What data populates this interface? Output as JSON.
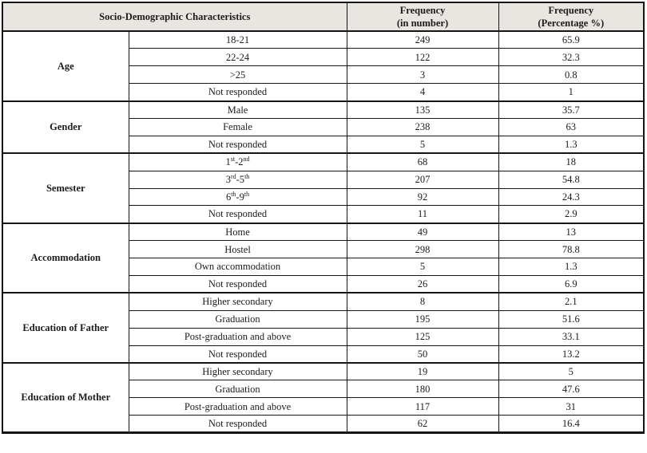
{
  "colors": {
    "header_bg": "#e9e6e2",
    "border": "#151515",
    "text": "#1c1c1c",
    "page_bg": "#ffffff"
  },
  "table": {
    "header": {
      "characteristics": "Socio-Demographic Characteristics",
      "freq_number_lines": [
        "Frequency",
        "(in number)"
      ],
      "freq_percent_lines": [
        "Frequency",
        "(Percentage %)"
      ]
    },
    "groups": [
      {
        "category": "Age",
        "rows": [
          {
            "label": [
              {
                "t": "18-21"
              }
            ],
            "freq": "249",
            "pct": "65.9"
          },
          {
            "label": [
              {
                "t": "22-24"
              }
            ],
            "freq": "122",
            "pct": "32.3"
          },
          {
            "label": [
              {
                "t": ">25"
              }
            ],
            "freq": "3",
            "pct": "0.8"
          },
          {
            "label": [
              {
                "t": "Not responded"
              }
            ],
            "freq": "4",
            "pct": "1"
          }
        ]
      },
      {
        "category": "Gender",
        "rows": [
          {
            "label": [
              {
                "t": "Male"
              }
            ],
            "freq": "135",
            "pct": "35.7"
          },
          {
            "label": [
              {
                "t": "Female"
              }
            ],
            "freq": "238",
            "pct": "63"
          },
          {
            "label": [
              {
                "t": "Not responded"
              }
            ],
            "freq": "5",
            "pct": "1.3"
          }
        ]
      },
      {
        "category": "Semester",
        "rows": [
          {
            "label": [
              {
                "t": "1"
              },
              {
                "t": "st",
                "sup": true
              },
              {
                "t": "-2"
              },
              {
                "t": "nd",
                "sup": true
              }
            ],
            "freq": "68",
            "pct": "18"
          },
          {
            "label": [
              {
                "t": "3"
              },
              {
                "t": "rd",
                "sup": true
              },
              {
                "t": "-5"
              },
              {
                "t": "th",
                "sup": true
              }
            ],
            "freq": "207",
            "pct": "54.8"
          },
          {
            "label": [
              {
                "t": "6"
              },
              {
                "t": "th",
                "sup": true
              },
              {
                "t": "-9"
              },
              {
                "t": "th",
                "sup": true
              }
            ],
            "freq": "92",
            "pct": "24.3"
          },
          {
            "label": [
              {
                "t": "Not responded"
              }
            ],
            "freq": "11",
            "pct": "2.9"
          }
        ]
      },
      {
        "category": "Accommodation",
        "rows": [
          {
            "label": [
              {
                "t": "Home"
              }
            ],
            "freq": "49",
            "pct": "13"
          },
          {
            "label": [
              {
                "t": "Hostel"
              }
            ],
            "freq": "298",
            "pct": "78.8"
          },
          {
            "label": [
              {
                "t": "Own accommodation"
              }
            ],
            "freq": "5",
            "pct": "1.3"
          },
          {
            "label": [
              {
                "t": "Not responded"
              }
            ],
            "freq": "26",
            "pct": "6.9"
          }
        ]
      },
      {
        "category": "Education of Father",
        "rows": [
          {
            "label": [
              {
                "t": "Higher secondary"
              }
            ],
            "freq": "8",
            "pct": "2.1"
          },
          {
            "label": [
              {
                "t": "Graduation"
              }
            ],
            "freq": "195",
            "pct": "51.6"
          },
          {
            "label": [
              {
                "t": "Post-graduation and above"
              }
            ],
            "freq": "125",
            "pct": "33.1"
          },
          {
            "label": [
              {
                "t": "Not responded"
              }
            ],
            "freq": "50",
            "pct": "13.2"
          }
        ]
      },
      {
        "category": "Education of Mother",
        "rows": [
          {
            "label": [
              {
                "t": "Higher secondary"
              }
            ],
            "freq": "19",
            "pct": "5"
          },
          {
            "label": [
              {
                "t": "Graduation"
              }
            ],
            "freq": "180",
            "pct": "47.6"
          },
          {
            "label": [
              {
                "t": "Post-graduation and above"
              }
            ],
            "freq": "117",
            "pct": "31"
          },
          {
            "label": [
              {
                "t": "Not responded"
              }
            ],
            "freq": "62",
            "pct": "16.4"
          }
        ]
      }
    ]
  }
}
